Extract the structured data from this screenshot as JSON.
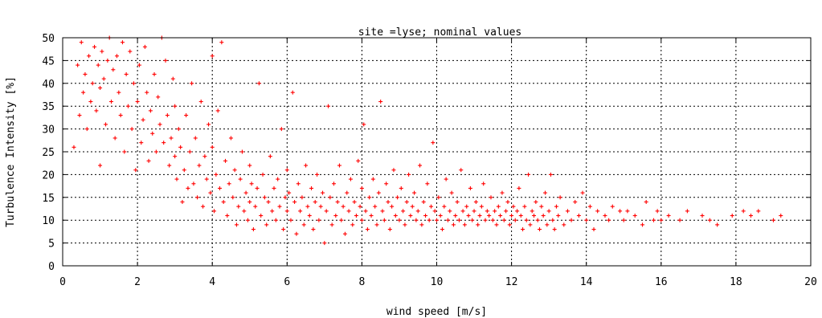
{
  "chart_data": {
    "type": "scatter",
    "title": "site =lyse; nominal values",
    "xlabel": "wind speed [m/s]",
    "ylabel": "Turbulence Intensity [%]",
    "xlim": [
      0,
      20
    ],
    "ylim": [
      0,
      50
    ],
    "x_ticks": [
      "0",
      "2",
      "4",
      "6",
      "8",
      "10",
      "12",
      "14",
      "16",
      "18",
      "20"
    ],
    "y_ticks": [
      "0",
      "5",
      "10",
      "15",
      "20",
      "25",
      "30",
      "35",
      "40",
      "45",
      "50"
    ],
    "grid": true,
    "marker": "plus",
    "color": "#ff0000",
    "series": [
      {
        "points": [
          [
            0.3,
            26
          ],
          [
            0.4,
            44
          ],
          [
            0.45,
            33
          ],
          [
            0.5,
            49
          ],
          [
            0.55,
            38
          ],
          [
            0.6,
            42
          ],
          [
            0.65,
            30
          ],
          [
            0.7,
            46
          ],
          [
            0.75,
            36
          ],
          [
            0.8,
            40
          ],
          [
            0.85,
            48
          ],
          [
            0.9,
            34
          ],
          [
            0.95,
            44
          ],
          [
            1.0,
            39
          ],
          [
            1.0,
            22
          ],
          [
            1.05,
            47
          ],
          [
            1.1,
            41
          ],
          [
            1.15,
            31
          ],
          [
            1.2,
            45
          ],
          [
            1.25,
            50
          ],
          [
            1.3,
            36
          ],
          [
            1.35,
            43
          ],
          [
            1.4,
            28
          ],
          [
            1.45,
            46
          ],
          [
            1.5,
            38
          ],
          [
            1.55,
            33
          ],
          [
            1.6,
            49
          ],
          [
            1.65,
            25
          ],
          [
            1.7,
            42
          ],
          [
            1.75,
            35
          ],
          [
            1.8,
            47
          ],
          [
            1.85,
            30
          ],
          [
            1.9,
            40
          ],
          [
            1.95,
            21
          ],
          [
            2.0,
            36
          ],
          [
            2.05,
            44
          ],
          [
            2.1,
            27
          ],
          [
            2.15,
            32
          ],
          [
            2.2,
            48
          ],
          [
            2.25,
            38
          ],
          [
            2.3,
            23
          ],
          [
            2.35,
            34
          ],
          [
            2.4,
            29
          ],
          [
            2.45,
            42
          ],
          [
            2.5,
            25
          ],
          [
            2.55,
            37
          ],
          [
            2.6,
            31
          ],
          [
            2.65,
            50
          ],
          [
            2.7,
            27
          ],
          [
            2.75,
            45
          ],
          [
            2.8,
            33
          ],
          [
            2.85,
            22
          ],
          [
            2.9,
            28
          ],
          [
            2.95,
            41
          ],
          [
            3.0,
            24
          ],
          [
            3.0,
            35
          ],
          [
            3.05,
            19
          ],
          [
            3.1,
            30
          ],
          [
            3.15,
            26
          ],
          [
            3.2,
            14
          ],
          [
            3.25,
            21
          ],
          [
            3.3,
            33
          ],
          [
            3.35,
            17
          ],
          [
            3.4,
            25
          ],
          [
            3.45,
            40
          ],
          [
            3.5,
            18
          ],
          [
            3.55,
            28
          ],
          [
            3.6,
            15
          ],
          [
            3.65,
            22
          ],
          [
            3.7,
            36
          ],
          [
            3.75,
            13
          ],
          [
            3.8,
            24
          ],
          [
            3.85,
            19
          ],
          [
            3.9,
            31
          ],
          [
            3.95,
            16
          ],
          [
            4.0,
            26
          ],
          [
            4.0,
            46
          ],
          [
            4.05,
            12
          ],
          [
            4.1,
            20
          ],
          [
            4.15,
            34
          ],
          [
            4.2,
            17
          ],
          [
            4.25,
            49
          ],
          [
            4.3,
            14
          ],
          [
            4.35,
            23
          ],
          [
            4.4,
            11
          ],
          [
            4.45,
            18
          ],
          [
            4.5,
            28
          ],
          [
            4.55,
            15
          ],
          [
            4.6,
            21
          ],
          [
            4.65,
            9
          ],
          [
            4.7,
            13
          ],
          [
            4.75,
            19
          ],
          [
            4.8,
            25
          ],
          [
            4.85,
            12
          ],
          [
            4.9,
            16
          ],
          [
            4.95,
            10
          ],
          [
            5.0,
            22
          ],
          [
            5.0,
            14
          ],
          [
            5.05,
            18
          ],
          [
            5.1,
            8
          ],
          [
            5.15,
            13
          ],
          [
            5.2,
            17
          ],
          [
            5.25,
            40
          ],
          [
            5.3,
            11
          ],
          [
            5.35,
            20
          ],
          [
            5.4,
            15
          ],
          [
            5.45,
            9
          ],
          [
            5.5,
            14
          ],
          [
            5.55,
            24
          ],
          [
            5.6,
            12
          ],
          [
            5.65,
            17
          ],
          [
            5.7,
            10
          ],
          [
            5.75,
            19
          ],
          [
            5.8,
            13
          ],
          [
            5.85,
            30
          ],
          [
            5.9,
            8
          ],
          [
            5.95,
            15
          ],
          [
            6.0,
            12
          ],
          [
            6.0,
            21
          ],
          [
            6.05,
            16
          ],
          [
            6.1,
            10
          ],
          [
            6.15,
            38
          ],
          [
            6.2,
            14
          ],
          [
            6.25,
            7
          ],
          [
            6.3,
            18
          ],
          [
            6.35,
            12
          ],
          [
            6.4,
            15
          ],
          [
            6.45,
            9
          ],
          [
            6.5,
            22
          ],
          [
            6.55,
            13
          ],
          [
            6.6,
            11
          ],
          [
            6.65,
            17
          ],
          [
            6.7,
            8
          ],
          [
            6.75,
            14
          ],
          [
            6.8,
            20
          ],
          [
            6.85,
            10
          ],
          [
            6.9,
            13
          ],
          [
            6.95,
            16
          ],
          [
            7.0,
            5
          ],
          [
            7.05,
            12
          ],
          [
            7.1,
            35
          ],
          [
            7.15,
            15
          ],
          [
            7.2,
            9
          ],
          [
            7.25,
            18
          ],
          [
            7.3,
            11
          ],
          [
            7.35,
            14
          ],
          [
            7.4,
            22
          ],
          [
            7.45,
            10
          ],
          [
            7.5,
            13
          ],
          [
            7.55,
            7
          ],
          [
            7.6,
            16
          ],
          [
            7.65,
            12
          ],
          [
            7.7,
            19
          ],
          [
            7.75,
            9
          ],
          [
            7.8,
            14
          ],
          [
            7.85,
            11
          ],
          [
            7.9,
            23
          ],
          [
            7.95,
            13
          ],
          [
            8.0,
            10
          ],
          [
            8.0,
            17
          ],
          [
            8.05,
            31
          ],
          [
            8.1,
            12
          ],
          [
            8.15,
            8
          ],
          [
            8.2,
            15
          ],
          [
            8.25,
            11
          ],
          [
            8.3,
            19
          ],
          [
            8.35,
            13
          ],
          [
            8.4,
            9
          ],
          [
            8.45,
            16
          ],
          [
            8.5,
            36
          ],
          [
            8.55,
            12
          ],
          [
            8.6,
            10
          ],
          [
            8.65,
            18
          ],
          [
            8.7,
            14
          ],
          [
            8.75,
            8
          ],
          [
            8.8,
            13
          ],
          [
            8.85,
            21
          ],
          [
            8.9,
            11
          ],
          [
            8.95,
            15
          ],
          [
            9.0,
            10
          ],
          [
            9.05,
            17
          ],
          [
            9.1,
            12
          ],
          [
            9.15,
            9
          ],
          [
            9.2,
            14
          ],
          [
            9.25,
            20
          ],
          [
            9.3,
            11
          ],
          [
            9.35,
            13
          ],
          [
            9.4,
            16
          ],
          [
            9.45,
            10
          ],
          [
            9.5,
            12
          ],
          [
            9.55,
            22
          ],
          [
            9.6,
            9
          ],
          [
            9.65,
            14
          ],
          [
            9.7,
            11
          ],
          [
            9.75,
            18
          ],
          [
            9.8,
            10
          ],
          [
            9.85,
            13
          ],
          [
            9.9,
            27
          ],
          [
            9.95,
            12
          ],
          [
            10.0,
            10
          ],
          [
            10.05,
            15
          ],
          [
            10.1,
            11
          ],
          [
            10.15,
            8
          ],
          [
            10.2,
            13
          ],
          [
            10.25,
            19
          ],
          [
            10.3,
            10
          ],
          [
            10.35,
            12
          ],
          [
            10.4,
            16
          ],
          [
            10.45,
            9
          ],
          [
            10.5,
            11
          ],
          [
            10.55,
            14
          ],
          [
            10.6,
            10
          ],
          [
            10.65,
            21
          ],
          [
            10.7,
            12
          ],
          [
            10.75,
            9
          ],
          [
            10.8,
            13
          ],
          [
            10.85,
            11
          ],
          [
            10.9,
            17
          ],
          [
            10.95,
            10
          ],
          [
            11.0,
            12
          ],
          [
            11.05,
            14
          ],
          [
            11.1,
            9
          ],
          [
            11.15,
            11
          ],
          [
            11.2,
            13
          ],
          [
            11.25,
            18
          ],
          [
            11.3,
            10
          ],
          [
            11.35,
            12
          ],
          [
            11.4,
            11
          ],
          [
            11.45,
            15
          ],
          [
            11.5,
            10
          ],
          [
            11.55,
            12
          ],
          [
            11.6,
            9
          ],
          [
            11.65,
            13
          ],
          [
            11.7,
            11
          ],
          [
            11.75,
            16
          ],
          [
            11.8,
            10
          ],
          [
            11.85,
            12
          ],
          [
            11.9,
            14
          ],
          [
            11.95,
            9
          ],
          [
            12.0,
            11
          ],
          [
            12.05,
            13
          ],
          [
            12.1,
            10
          ],
          [
            12.15,
            12
          ],
          [
            12.2,
            17
          ],
          [
            12.25,
            11
          ],
          [
            12.3,
            8
          ],
          [
            12.35,
            13
          ],
          [
            12.4,
            10
          ],
          [
            12.45,
            20
          ],
          [
            12.5,
            9
          ],
          [
            12.55,
            12
          ],
          [
            12.6,
            11
          ],
          [
            12.65,
            14
          ],
          [
            12.7,
            10
          ],
          [
            12.75,
            8
          ],
          [
            12.8,
            13
          ],
          [
            12.85,
            11
          ],
          [
            12.9,
            16
          ],
          [
            12.95,
            9
          ],
          [
            13.0,
            12
          ],
          [
            13.05,
            20
          ],
          [
            13.1,
            10
          ],
          [
            13.15,
            8
          ],
          [
            13.2,
            13
          ],
          [
            13.25,
            11
          ],
          [
            13.3,
            15
          ],
          [
            13.4,
            9
          ],
          [
            13.5,
            12
          ],
          [
            13.6,
            10
          ],
          [
            13.7,
            14
          ],
          [
            13.8,
            11
          ],
          [
            13.9,
            16
          ],
          [
            14.0,
            10
          ],
          [
            14.1,
            13
          ],
          [
            14.2,
            8
          ],
          [
            14.3,
            12
          ],
          [
            14.5,
            11
          ],
          [
            14.6,
            10
          ],
          [
            14.7,
            13
          ],
          [
            14.9,
            12
          ],
          [
            15.0,
            10
          ],
          [
            15.1,
            12
          ],
          [
            15.3,
            11
          ],
          [
            15.5,
            9
          ],
          [
            15.6,
            14
          ],
          [
            15.8,
            10
          ],
          [
            15.9,
            12
          ],
          [
            16.0,
            10
          ],
          [
            16.2,
            11
          ],
          [
            16.5,
            10
          ],
          [
            16.7,
            12
          ],
          [
            17.1,
            11
          ],
          [
            17.3,
            10
          ],
          [
            17.5,
            9
          ],
          [
            17.9,
            11
          ],
          [
            18.2,
            12
          ],
          [
            18.4,
            11
          ],
          [
            18.6,
            12
          ],
          [
            19.0,
            10
          ],
          [
            19.2,
            11
          ]
        ]
      }
    ]
  }
}
